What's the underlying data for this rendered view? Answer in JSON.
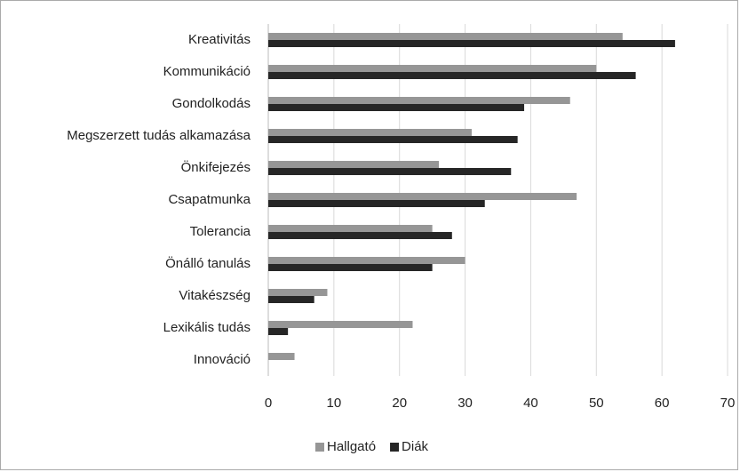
{
  "chart_data": {
    "type": "barh",
    "categories": [
      "Kreativitás",
      "Kommunikáció",
      "Gondolkodás",
      "Megszerzett tudás alkamazása",
      "Önkifejezés",
      "Csapatmunka",
      "Tolerancia",
      "Önálló tanulás",
      "Vitakészség",
      "Lexikális tudás",
      "Innováció"
    ],
    "series": [
      {
        "name": "Hallgató",
        "color": "#969696",
        "values": [
          54,
          50,
          46,
          31,
          26,
          47,
          25,
          30,
          9,
          22,
          4
        ]
      },
      {
        "name": "Diák",
        "color": "#262626",
        "values": [
          62,
          56,
          39,
          38,
          37,
          33,
          28,
          25,
          7,
          3,
          0
        ]
      }
    ],
    "xlim": [
      0,
      70
    ],
    "xticks": [
      0,
      10,
      20,
      30,
      40,
      50,
      60,
      70
    ],
    "grid": true,
    "legend": "bottom"
  }
}
